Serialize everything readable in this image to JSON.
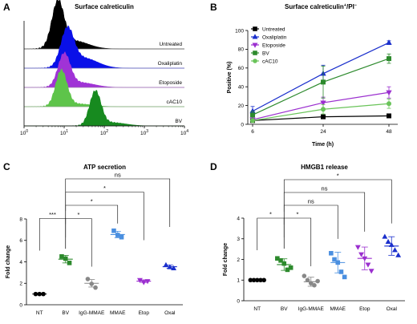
{
  "panels": {
    "A": "A",
    "B": "B",
    "C": "C",
    "D": "D"
  },
  "chart_data": [
    {
      "id": "A",
      "type": "area",
      "title": "Surface calreticulin",
      "xscale": "log",
      "xlim": [
        1,
        10000
      ],
      "x_ticks": [
        {
          "value": 1,
          "base": "10",
          "exp": "0"
        },
        {
          "value": 10,
          "base": "10",
          "exp": "1"
        },
        {
          "value": 100,
          "base": "10",
          "exp": "2"
        },
        {
          "value": 1000,
          "base": "10",
          "exp": "3"
        },
        {
          "value": 10000,
          "base": "10",
          "exp": "4"
        }
      ],
      "series": [
        {
          "name": "Untreated",
          "peak": 7,
          "spread": 0.15,
          "color": "#000000",
          "tail": 0.18
        },
        {
          "name": "Oxaliplatin",
          "peak": 12,
          "spread": 0.16,
          "color": "#0a10e8",
          "tail": 0.28
        },
        {
          "name": "Etoposide",
          "peak": 10,
          "spread": 0.15,
          "color": "#a033d6",
          "tail": 0.15
        },
        {
          "name": "cAC10",
          "peak": 8.5,
          "spread": 0.14,
          "color": "#5ec44a",
          "tail": 0.08
        },
        {
          "name": "BV",
          "peak": 60,
          "spread": 0.14,
          "color": "#178a1f",
          "tail": 0.1
        }
      ]
    },
    {
      "id": "B",
      "type": "line",
      "title_parts": [
        "Surface calreticulin",
        "+",
        "/PI",
        "−"
      ],
      "xlabel": "Time (h)",
      "ylabel": "Positive (%)",
      "x": [
        6,
        24,
        48
      ],
      "ylim": [
        0,
        100
      ],
      "y_ticks": [
        0,
        20,
        40,
        60,
        80,
        100
      ],
      "series": [
        {
          "name": "Untreated",
          "color": "#000000",
          "marker": "square",
          "values": [
            4,
            8,
            9
          ],
          "err": [
            1,
            1.5,
            1.5
          ]
        },
        {
          "name": "Oxaliplatin",
          "color": "#1a2fcc",
          "marker": "triangle-up",
          "values": [
            14,
            54,
            87
          ],
          "err": [
            5,
            9,
            2
          ]
        },
        {
          "name": "Etoposide",
          "color": "#9b2fcf",
          "marker": "triangle-down",
          "values": [
            5,
            23,
            34
          ],
          "err": [
            2,
            6,
            6
          ]
        },
        {
          "name": "BV",
          "color": "#2d8a2d",
          "marker": "square",
          "values": [
            10,
            45,
            70
          ],
          "err": [
            4,
            17,
            5
          ]
        },
        {
          "name": "cAC10",
          "color": "#6ac45a",
          "marker": "circle",
          "values": [
            4,
            16,
            22
          ],
          "err": [
            2,
            5,
            5
          ]
        }
      ]
    },
    {
      "id": "C",
      "type": "scatter",
      "title": "ATP secretion",
      "ylabel": "Fold change",
      "ylim": [
        0,
        8
      ],
      "y_ticks": [
        0,
        2,
        4,
        6,
        8
      ],
      "categories": [
        "NT",
        "BV",
        "IgG-MMAE",
        "MMAE",
        "Etop",
        "Oxal"
      ],
      "groups": [
        {
          "category": "NT",
          "color": "#000000",
          "marker": "circle",
          "points": [
            1.0,
            1.0,
            1.0
          ],
          "mean": 1.0,
          "err": 0
        },
        {
          "category": "BV",
          "color": "#2d8a2d",
          "marker": "square",
          "points": [
            4.5,
            4.3,
            3.9
          ],
          "mean": 4.25,
          "err": 0.35
        },
        {
          "category": "IgG-MMAE",
          "color": "#888888",
          "marker": "circle",
          "points": [
            2.4,
            1.95,
            1.6
          ],
          "mean": 2.0,
          "err": 0.35
        },
        {
          "category": "MMAE",
          "color": "#4a8fe0",
          "marker": "square",
          "points": [
            6.9,
            6.5,
            6.3
          ],
          "mean": 6.55,
          "err": 0.3
        },
        {
          "category": "Etop",
          "color": "#9b2fcf",
          "marker": "triangle-down",
          "points": [
            2.3,
            2.1,
            2.2
          ],
          "mean": 2.2,
          "err": 0.12
        },
        {
          "category": "Oxal",
          "color": "#1a2fcc",
          "marker": "triangle-up",
          "points": [
            3.7,
            3.5,
            3.4
          ],
          "mean": 3.55,
          "err": 0.15
        }
      ],
      "comparisons": [
        {
          "from": "NT",
          "to": "BV",
          "label": "***",
          "level": 0
        },
        {
          "from": "BV",
          "to": "IgG-MMAE",
          "label": "*",
          "level": 0
        },
        {
          "from": "BV",
          "to": "MMAE",
          "label": "*",
          "level": 1
        },
        {
          "from": "BV",
          "to": "Etop",
          "label": "*",
          "level": 2
        },
        {
          "from": "BV",
          "to": "Oxal",
          "label": "ns",
          "level": 3
        }
      ]
    },
    {
      "id": "D",
      "type": "scatter",
      "title": "HMGB1 release",
      "ylabel": "Fold change",
      "ylim": [
        0,
        4
      ],
      "y_ticks": [
        0,
        1,
        2,
        3,
        4
      ],
      "categories": [
        "NT",
        "BV",
        "IgG-MMAE",
        "MMAE",
        "Etop",
        "Oxal"
      ],
      "groups": [
        {
          "category": "NT",
          "color": "#000000",
          "marker": "circle",
          "points": [
            1.0,
            1.0,
            1.0,
            1.0,
            1.0
          ],
          "mean": 1.0,
          "err": 0
        },
        {
          "category": "BV",
          "color": "#2d8a2d",
          "marker": "square",
          "points": [
            2.05,
            1.95,
            1.8,
            1.5,
            1.6
          ],
          "mean": 1.75,
          "err": 0.28
        },
        {
          "category": "IgG-MMAE",
          "color": "#888888",
          "marker": "circle",
          "points": [
            1.2,
            1.0,
            0.85,
            0.75,
            0.95
          ],
          "mean": 0.92,
          "err": 0.22
        },
        {
          "category": "MMAE",
          "color": "#4a8fe0",
          "marker": "square",
          "points": [
            2.3,
            2.0,
            1.85,
            1.4,
            1.15
          ],
          "mean": 1.85,
          "err": 0.5
        },
        {
          "category": "Etop",
          "color": "#9b2fcf",
          "marker": "triangle-down",
          "points": [
            2.6,
            2.25,
            2.05,
            1.75,
            1.45
          ],
          "mean": 2.05,
          "err": 0.55
        },
        {
          "category": "Oxal",
          "color": "#1a2fcc",
          "marker": "triangle-up",
          "points": [
            3.1,
            2.85,
            2.7,
            2.45,
            2.2
          ],
          "mean": 2.65,
          "err": 0.45
        }
      ],
      "comparisons": [
        {
          "from": "NT",
          "to": "BV",
          "label": "*",
          "level": 0
        },
        {
          "from": "BV",
          "to": "IgG-MMAE",
          "label": "*",
          "level": 0
        },
        {
          "from": "BV",
          "to": "MMAE",
          "label": "ns",
          "level": 1
        },
        {
          "from": "BV",
          "to": "Etop",
          "label": "ns",
          "level": 2
        },
        {
          "from": "BV",
          "to": "Oxal",
          "label": "*",
          "level": 3
        }
      ]
    }
  ]
}
